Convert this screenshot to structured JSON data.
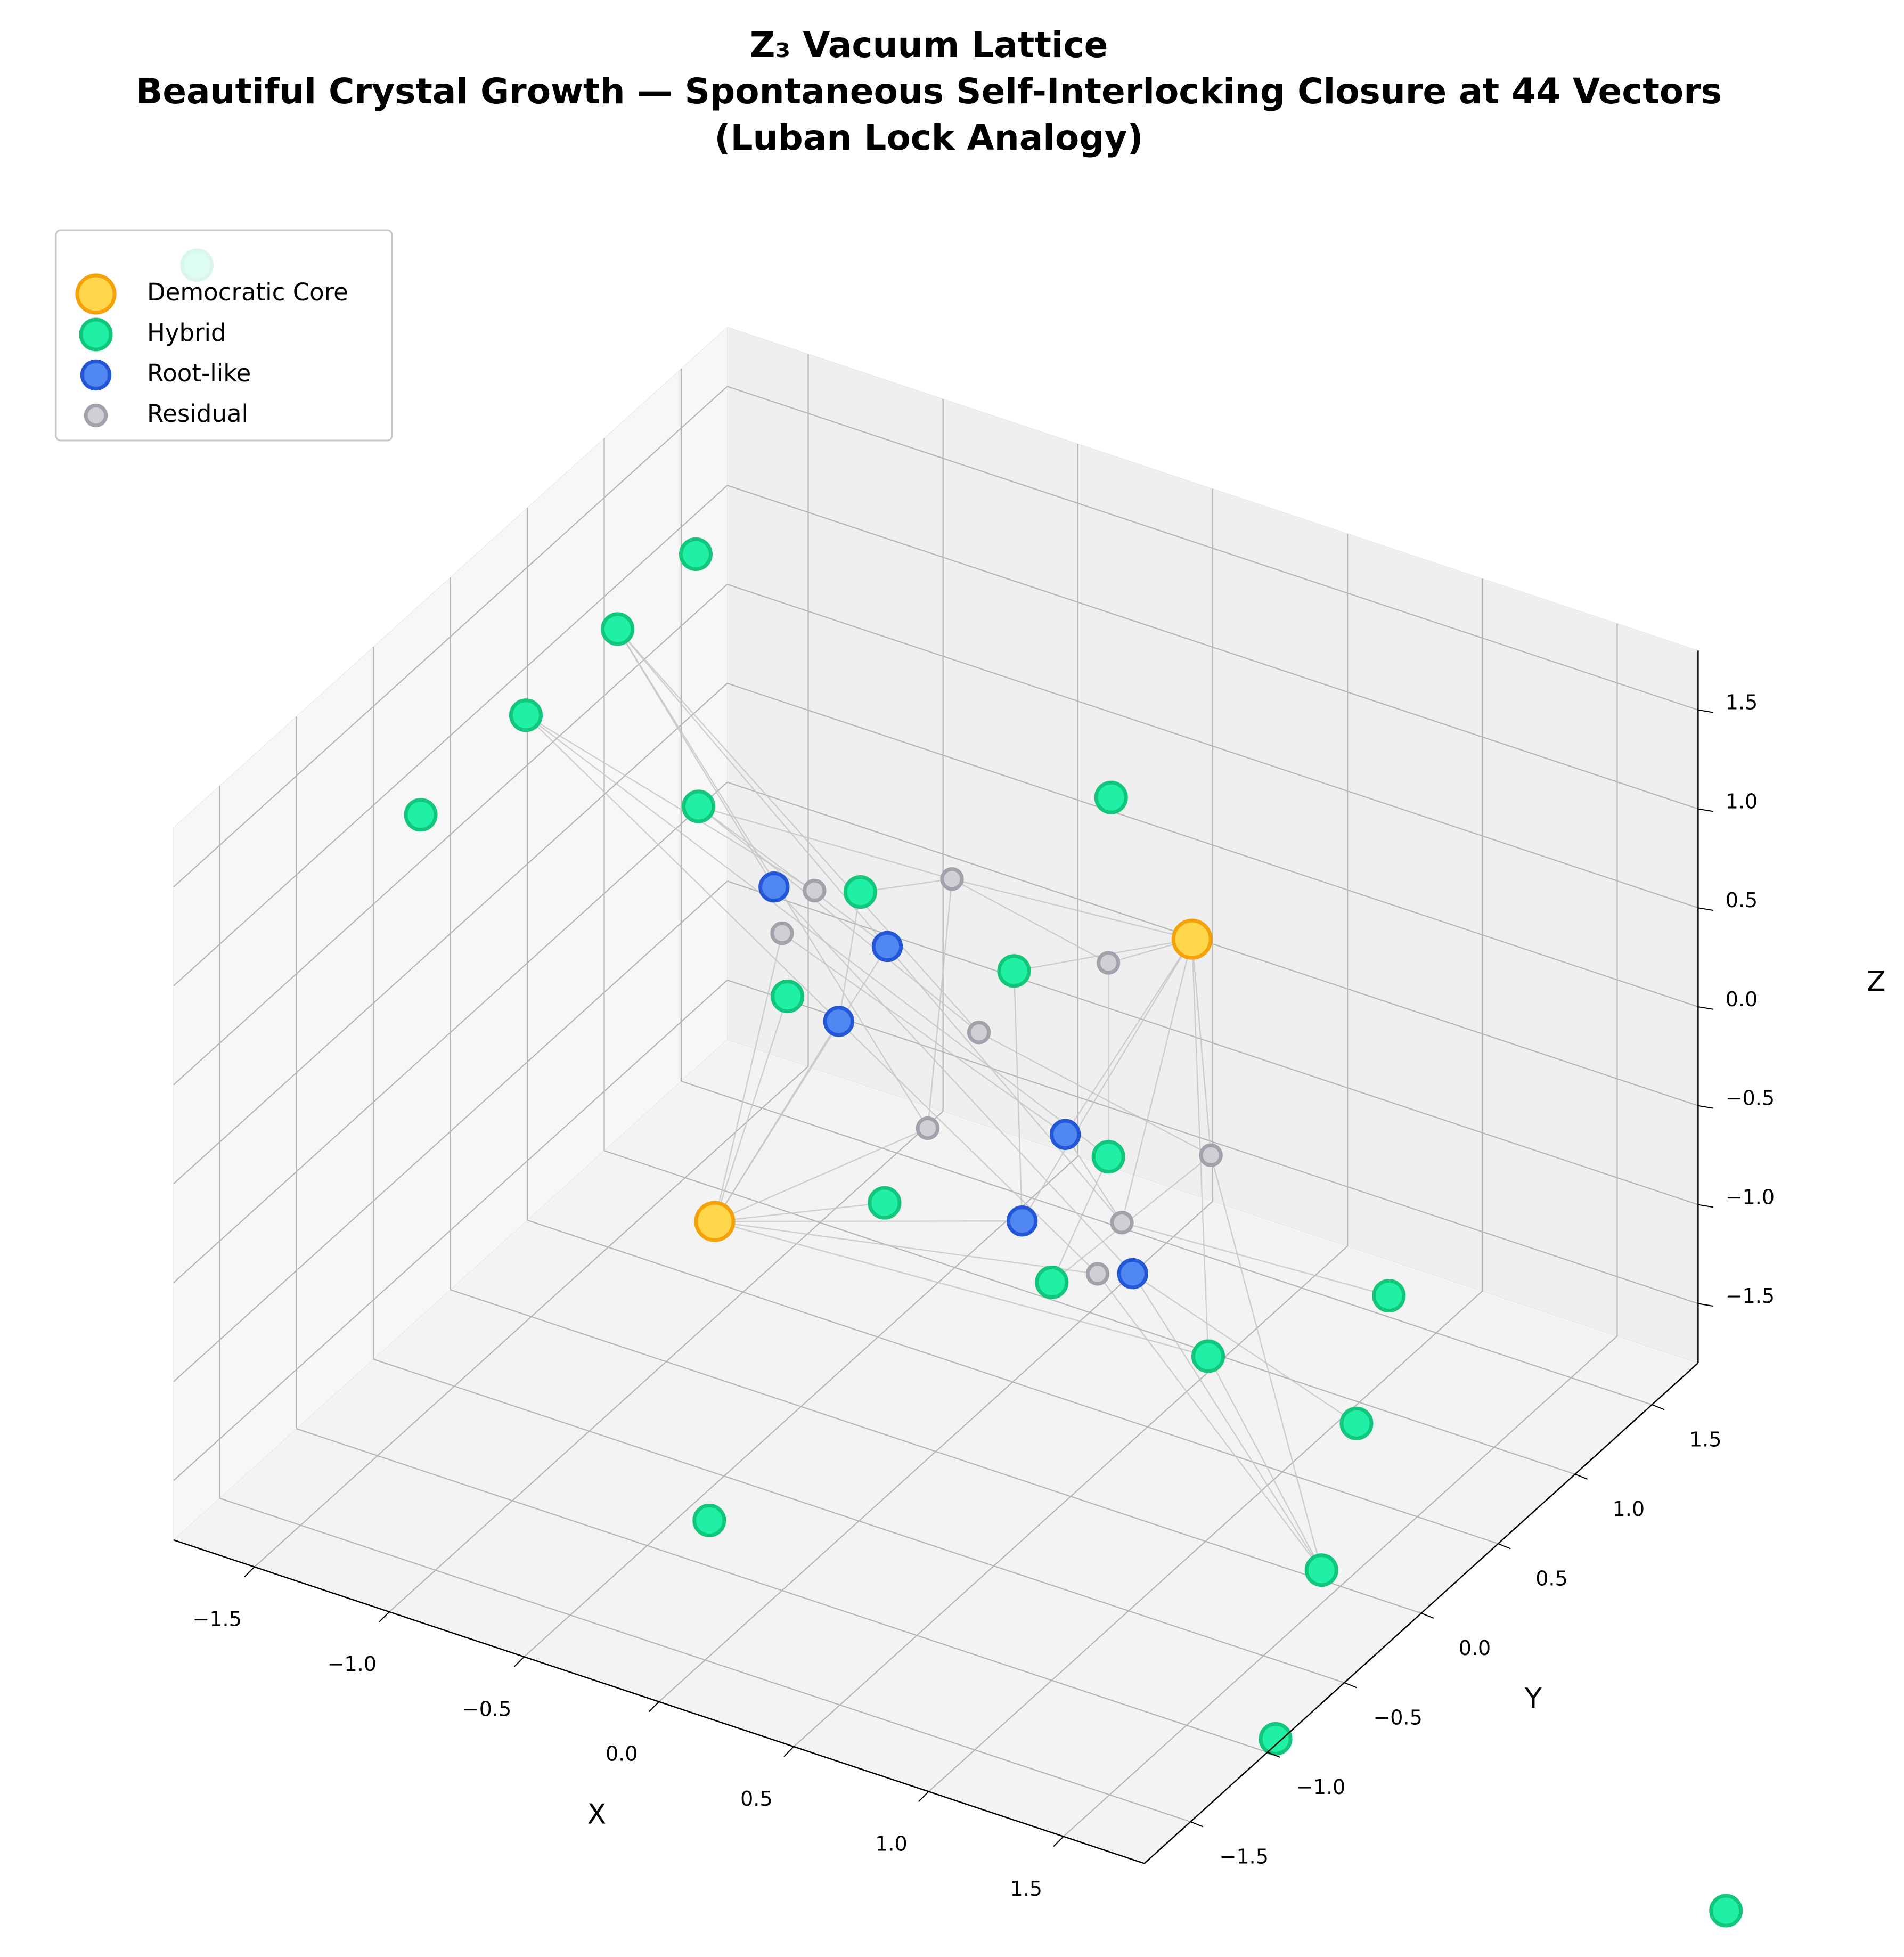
{
  "chart_data": {
    "type": "scatter3d",
    "title": [
      "Z₃ Vacuum Lattice",
      "Beautiful Crystal Growth — Spontaneous Self-Interlocking Closure at 44 Vectors",
      "(Luban Lock Analogy)"
    ],
    "x_label": "X",
    "y_label": "Y",
    "z_label": "Z",
    "xlim": [
      -1.8,
      1.8
    ],
    "ylim": [
      -1.8,
      1.8
    ],
    "zlim": [
      -1.8,
      1.8
    ],
    "xticks": [
      {
        "value": -1.5,
        "label": "−1.5"
      },
      {
        "value": -1,
        "label": "−1.0"
      },
      {
        "value": -0.5,
        "label": "−0.5"
      },
      {
        "value": 0,
        "label": "0.0"
      },
      0.5,
      {
        "value": 1,
        "label": "1.0"
      },
      1.5
    ],
    "yticks": [
      {
        "value": -1.5,
        "label": "−1.5"
      },
      {
        "value": -1,
        "label": "−1.0"
      },
      {
        "value": -0.5,
        "label": "−0.5"
      },
      {
        "value": 0,
        "label": "0.0"
      },
      0.5,
      {
        "value": 1,
        "label": "1.0"
      },
      1.5
    ],
    "zticks": [
      {
        "value": -1.5,
        "label": "−1.5"
      },
      {
        "value": -1,
        "label": "−1.0"
      },
      {
        "value": -0.5,
        "label": "−0.5"
      },
      {
        "value": 0,
        "label": "0.0"
      },
      0.5,
      {
        "value": 1,
        "label": "1.0"
      },
      1.5
    ],
    "grid": true,
    "legend": "upper left",
    "edge_color": "#c4c4c4",
    "series": [
      {
        "name": "Democratic Core",
        "color": "#ffd54a",
        "edgecolor": "#f5a10a",
        "x": [
          0.95,
          -0.82
        ],
        "y": [
          0,
          0
        ],
        "z": [
          1.22,
          -1.01
        ]
      },
      {
        "name": "Hybrid",
        "color": "#1ff0a6",
        "edgecolor": "#12c77c",
        "x": [
          -2.74,
          -0.89,
          -1.18,
          -1.52,
          -1.91,
          -0.88,
          0.65,
          -0.28,
          0.29,
          -0.55,
          0.64,
          -0.19,
          0.43,
          1.68,
          1.01,
          1.56,
          -0.84,
          1.43,
          1.26,
          2.93
        ],
        "y": [
          0,
          0,
          0,
          0,
          0,
          0,
          0,
          0,
          0,
          0,
          0,
          0,
          0,
          0,
          0,
          0,
          0,
          0,
          0,
          0
        ],
        "z": [
          2.95,
          2.33,
          1.82,
          1.23,
          0.55,
          1.06,
          1.8,
          0.9,
          0.76,
          0.25,
          -0.02,
          -0.63,
          -0.75,
          -0.25,
          -0.86,
          -0.95,
          -2.53,
          -1.75,
          -2.68,
          -2.79
        ]
      },
      {
        "name": "Root-like",
        "color": "#5087f0",
        "edgecolor": "#2457d6",
        "x": [
          -0.6,
          -0.18,
          -0.36,
          0.48,
          0.32,
          0.73
        ],
        "y": [
          0,
          0,
          0,
          0,
          0,
          0
        ],
        "z": [
          0.78,
          0.67,
          0.21,
          0.02,
          -0.49,
          -0.57
        ]
      },
      {
        "name": "Residual",
        "color": "#cfcfd6",
        "edgecolor": "#a2a2ac",
        "x": [
          -0.45,
          0.06,
          -0.57,
          0.64,
          0.16,
          -0.03,
          1.02,
          0.69,
          0.6
        ],
        "y": [
          0,
          0,
          0,
          0,
          0,
          0,
          0,
          0,
          0
        ],
        "z": [
          0.83,
          1.12,
          0.56,
          0.96,
          0.39,
          -0.18,
          0.16,
          -0.33,
          -0.63
        ]
      }
    ],
    "edges": [
      [
        0,
        0,
        3,
        3
      ],
      [
        0,
        0,
        3,
        1
      ],
      [
        0,
        0,
        1,
        8
      ],
      [
        0,
        0,
        2,
        3
      ],
      [
        0,
        0,
        3,
        7
      ],
      [
        0,
        0,
        1,
        14
      ],
      [
        0,
        0,
        2,
        4
      ],
      [
        0,
        0,
        3,
        6
      ],
      [
        0,
        1,
        1,
        11
      ],
      [
        0,
        1,
        2,
        4
      ],
      [
        0,
        1,
        2,
        2
      ],
      [
        0,
        1,
        3,
        2
      ],
      [
        0,
        1,
        1,
        9
      ],
      [
        0,
        1,
        3,
        5
      ],
      [
        0,
        1,
        1,
        14
      ],
      [
        0,
        1,
        2,
        1
      ],
      [
        0,
        1,
        3,
        8
      ],
      [
        1,
        2,
        2,
        0
      ],
      [
        1,
        2,
        3,
        4
      ],
      [
        1,
        2,
        2,
        1
      ],
      [
        1,
        2,
        3,
        5
      ],
      [
        1,
        3,
        3,
        0
      ],
      [
        1,
        3,
        2,
        2
      ],
      [
        1,
        3,
        1,
        10
      ],
      [
        1,
        5,
        3,
        1
      ],
      [
        1,
        5,
        2,
        1
      ],
      [
        1,
        5,
        3,
        4
      ],
      [
        1,
        7,
        3,
        1
      ],
      [
        1,
        7,
        2,
        2
      ],
      [
        3,
        1,
        3,
        3
      ],
      [
        3,
        1,
        3,
        5
      ],
      [
        2,
        1,
        3,
        7
      ],
      [
        2,
        2,
        3,
        8
      ],
      [
        2,
        0,
        2,
        5
      ],
      [
        3,
        2,
        2,
        3
      ],
      [
        3,
        4,
        3,
        6
      ],
      [
        3,
        6,
        1,
        12
      ],
      [
        3,
        6,
        1,
        17
      ],
      [
        1,
        14,
        1,
        17
      ],
      [
        1,
        13,
        3,
        7
      ],
      [
        1,
        15,
        2,
        5
      ],
      [
        1,
        17,
        2,
        5
      ],
      [
        1,
        17,
        3,
        8
      ],
      [
        3,
        3,
        1,
        10
      ],
      [
        1,
        10,
        1,
        12
      ],
      [
        2,
        3,
        3,
        7
      ],
      [
        1,
        8,
        2,
        4
      ]
    ]
  }
}
